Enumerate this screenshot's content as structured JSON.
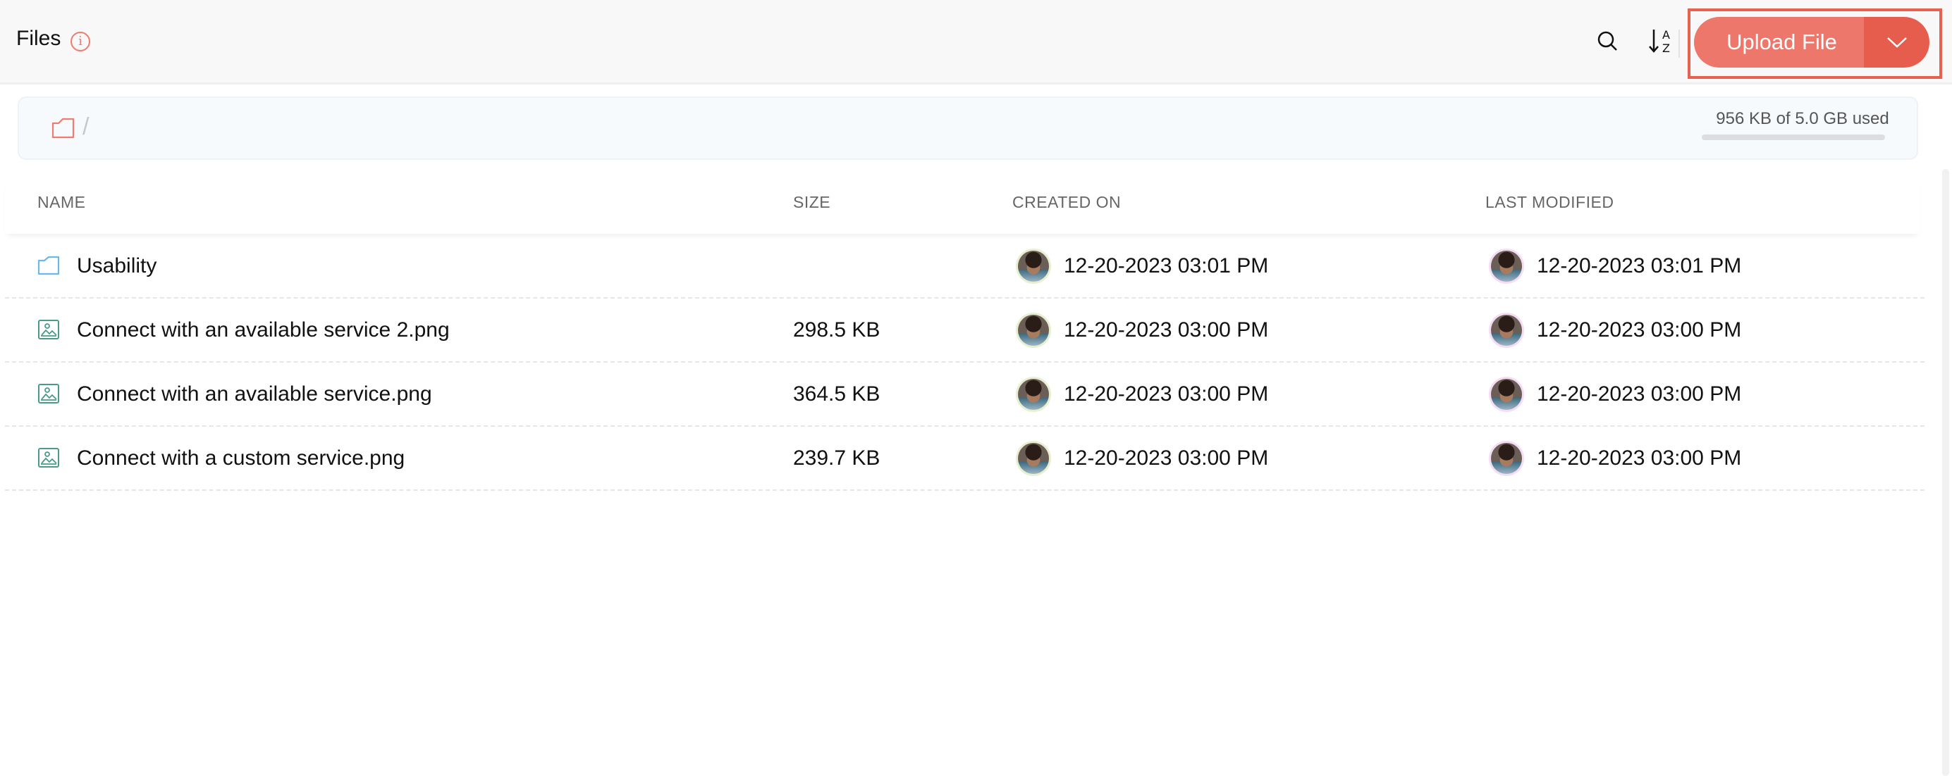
{
  "header": {
    "title": "Files",
    "info_icon": "info-icon",
    "search_icon": "search-icon",
    "sort_icon": "sort-az-icon",
    "upload_label": "Upload File",
    "upload_dropdown_icon": "chevron-down-icon",
    "accent": "#e65d4e"
  },
  "breadcrumb": {
    "root_icon": "folder-icon",
    "separator": "/"
  },
  "storage": {
    "label": "956 KB of 5.0 GB used",
    "used_fraction": 0.0002
  },
  "table": {
    "columns": [
      "NAME",
      "SIZE",
      "CREATED ON",
      "LAST MODIFIED"
    ],
    "rows": [
      {
        "type": "folder",
        "name": "Usability",
        "size": "",
        "created": "12-20-2023 03:01 PM",
        "modified": "12-20-2023 03:01 PM"
      },
      {
        "type": "image",
        "name": "Connect with an available service 2.png",
        "size": "298.5 KB",
        "created": "12-20-2023 03:00 PM",
        "modified": "12-20-2023 03:00 PM"
      },
      {
        "type": "image",
        "name": "Connect with an available service.png",
        "size": "364.5 KB",
        "created": "12-20-2023 03:00 PM",
        "modified": "12-20-2023 03:00 PM"
      },
      {
        "type": "image",
        "name": "Connect with a custom service.png",
        "size": "239.7 KB",
        "created": "12-20-2023 03:00 PM",
        "modified": "12-20-2023 03:00 PM"
      }
    ]
  }
}
